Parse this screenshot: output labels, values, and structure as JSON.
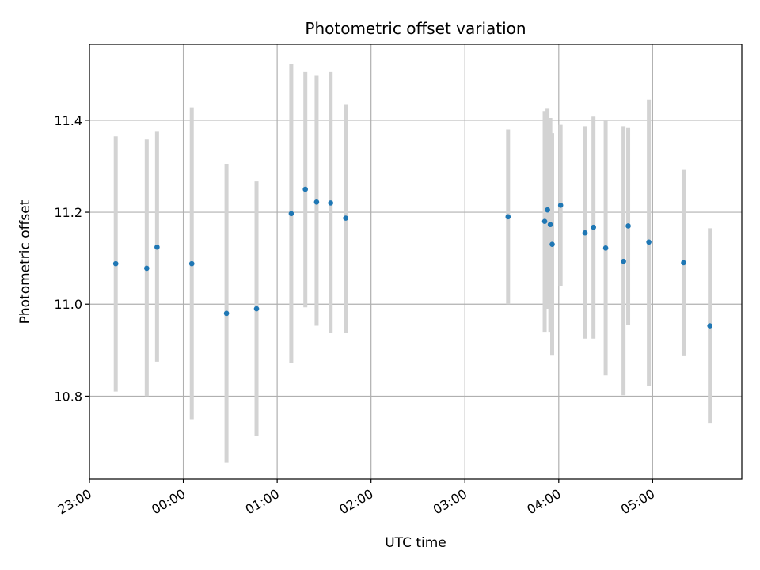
{
  "chart_data": {
    "type": "scatter",
    "title": "Photometric offset variation",
    "xlabel": "UTC time",
    "ylabel": "Photometric offset",
    "grid": true,
    "colors": {
      "point": "#1f77b4",
      "errorbar": "#d3d3d3",
      "grid": "#b0b0b0",
      "axis": "#000000"
    },
    "x_unit": "hours since 00:00 UTC",
    "xlim": [
      -1.0,
      5.95
    ],
    "ylim": [
      10.62,
      11.565
    ],
    "x_ticks": [
      {
        "value": -1,
        "label": "23:00"
      },
      {
        "value": 0,
        "label": "00:00"
      },
      {
        "value": 1,
        "label": "01:00"
      },
      {
        "value": 2,
        "label": "02:00"
      },
      {
        "value": 3,
        "label": "03:00"
      },
      {
        "value": 4,
        "label": "04:00"
      },
      {
        "value": 5,
        "label": "05:00"
      }
    ],
    "y_ticks": [
      {
        "value": 10.8,
        "label": "10.8"
      },
      {
        "value": 11.0,
        "label": "11.0"
      },
      {
        "value": 11.2,
        "label": "11.2"
      },
      {
        "value": 11.4,
        "label": "11.4"
      }
    ],
    "points": [
      {
        "x": -0.72,
        "y": 11.088,
        "ylow": 10.81,
        "yhigh": 11.365
      },
      {
        "x": -0.39,
        "y": 11.078,
        "ylow": 10.8,
        "yhigh": 11.358
      },
      {
        "x": -0.28,
        "y": 11.124,
        "ylow": 10.875,
        "yhigh": 11.375
      },
      {
        "x": 0.09,
        "y": 11.088,
        "ylow": 10.75,
        "yhigh": 11.428
      },
      {
        "x": 0.46,
        "y": 10.98,
        "ylow": 10.655,
        "yhigh": 11.305
      },
      {
        "x": 0.78,
        "y": 10.99,
        "ylow": 10.713,
        "yhigh": 11.267
      },
      {
        "x": 1.15,
        "y": 11.197,
        "ylow": 10.873,
        "yhigh": 11.522
      },
      {
        "x": 1.3,
        "y": 11.25,
        "ylow": 10.993,
        "yhigh": 11.505
      },
      {
        "x": 1.42,
        "y": 11.222,
        "ylow": 10.953,
        "yhigh": 11.497
      },
      {
        "x": 1.57,
        "y": 11.22,
        "ylow": 10.938,
        "yhigh": 11.505
      },
      {
        "x": 1.73,
        "y": 11.187,
        "ylow": 10.938,
        "yhigh": 11.435
      },
      {
        "x": 3.46,
        "y": 11.19,
        "ylow": 11.0,
        "yhigh": 11.38
      },
      {
        "x": 3.85,
        "y": 11.18,
        "ylow": 10.94,
        "yhigh": 11.42
      },
      {
        "x": 3.88,
        "y": 11.205,
        "ylow": 10.99,
        "yhigh": 11.425
      },
      {
        "x": 3.91,
        "y": 11.173,
        "ylow": 10.94,
        "yhigh": 11.405
      },
      {
        "x": 3.93,
        "y": 11.13,
        "ylow": 10.888,
        "yhigh": 11.372
      },
      {
        "x": 4.02,
        "y": 11.215,
        "ylow": 11.04,
        "yhigh": 11.39
      },
      {
        "x": 4.28,
        "y": 11.155,
        "ylow": 10.925,
        "yhigh": 11.387
      },
      {
        "x": 4.37,
        "y": 11.167,
        "ylow": 10.925,
        "yhigh": 11.408
      },
      {
        "x": 4.5,
        "y": 11.122,
        "ylow": 10.845,
        "yhigh": 11.4
      },
      {
        "x": 4.69,
        "y": 11.093,
        "ylow": 10.802,
        "yhigh": 11.387
      },
      {
        "x": 4.74,
        "y": 11.17,
        "ylow": 10.955,
        "yhigh": 11.383
      },
      {
        "x": 4.96,
        "y": 11.135,
        "ylow": 10.823,
        "yhigh": 11.445
      },
      {
        "x": 5.33,
        "y": 11.09,
        "ylow": 10.887,
        "yhigh": 11.292
      },
      {
        "x": 5.61,
        "y": 10.953,
        "ylow": 10.742,
        "yhigh": 11.165
      }
    ]
  }
}
